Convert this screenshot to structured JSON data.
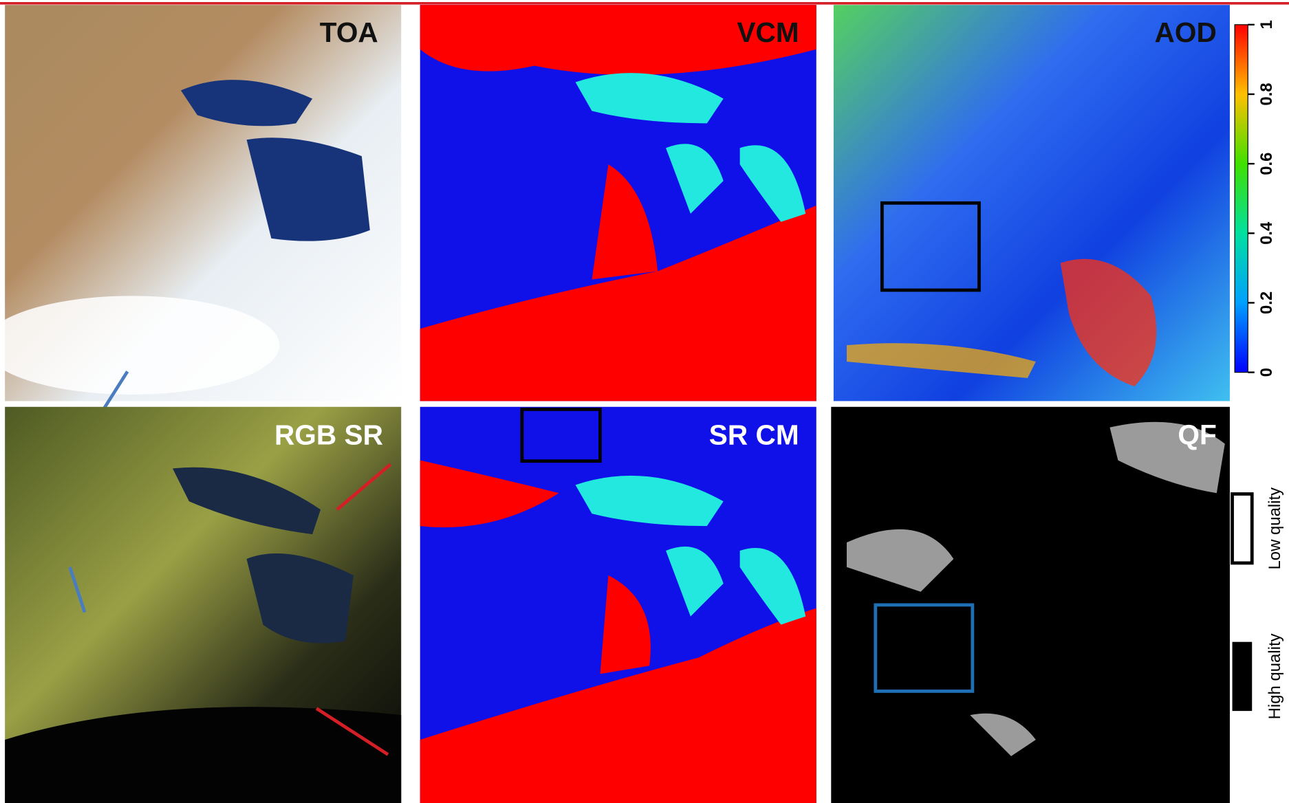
{
  "panels": [
    {
      "label": "TOA"
    },
    {
      "label": "VCM"
    },
    {
      "label": "AOD"
    },
    {
      "label": "RGB SR"
    },
    {
      "label": "SR CM"
    },
    {
      "label": "QF"
    }
  ],
  "colorbar": {
    "range": [
      0,
      1
    ],
    "ticks": [
      0,
      0.2,
      0.4,
      0.6,
      0.8,
      1
    ]
  },
  "quality_legend": [
    {
      "label": "Low quality"
    },
    {
      "label": "High quality"
    }
  ]
}
